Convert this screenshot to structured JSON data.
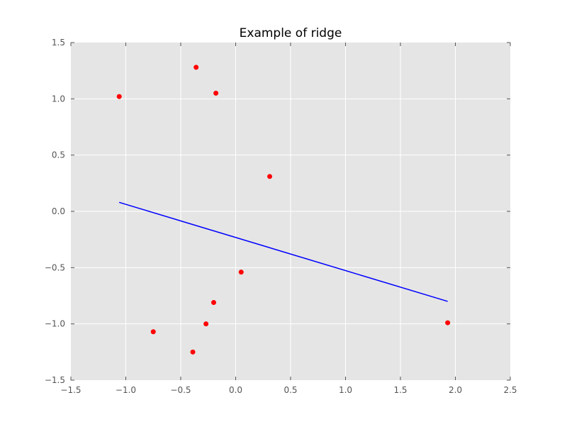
{
  "chart_data": {
    "type": "scatter",
    "title": "Example of ridge",
    "xlabel": "",
    "ylabel": "",
    "xlim": [
      -1.5,
      2.5
    ],
    "ylim": [
      -1.5,
      1.5
    ],
    "grid": true,
    "x_ticks": [
      -1.5,
      -1.0,
      -0.5,
      0.0,
      0.5,
      1.0,
      1.5,
      2.0,
      2.5
    ],
    "y_ticks": [
      -1.5,
      -1.0,
      -0.5,
      0.0,
      0.5,
      1.0,
      1.5
    ],
    "x_tick_labels": [
      "−1.5",
      "−1.0",
      "−0.5",
      "0.0",
      "0.5",
      "1.0",
      "1.5",
      "2.0",
      "2.5"
    ],
    "y_tick_labels": [
      "−1.5",
      "−1.0",
      "−0.5",
      "0.0",
      "0.5",
      "1.0",
      "1.5"
    ],
    "colors": {
      "plot_background": "#e5e5e5",
      "grid": "#ffffff",
      "points": "#ff0000",
      "line": "#0000ff"
    },
    "series": [
      {
        "kind": "scatter",
        "x": [
          -1.06,
          -0.36,
          -0.18,
          0.31,
          0.05,
          -0.2,
          -0.27,
          -0.75,
          -0.39,
          1.93
        ],
        "y": [
          1.02,
          1.28,
          1.05,
          0.31,
          -0.54,
          -0.81,
          -1.0,
          -1.07,
          -1.25,
          -0.99
        ]
      },
      {
        "kind": "line",
        "x": [
          -1.06,
          1.93
        ],
        "y": [
          0.08,
          -0.8
        ]
      }
    ]
  }
}
